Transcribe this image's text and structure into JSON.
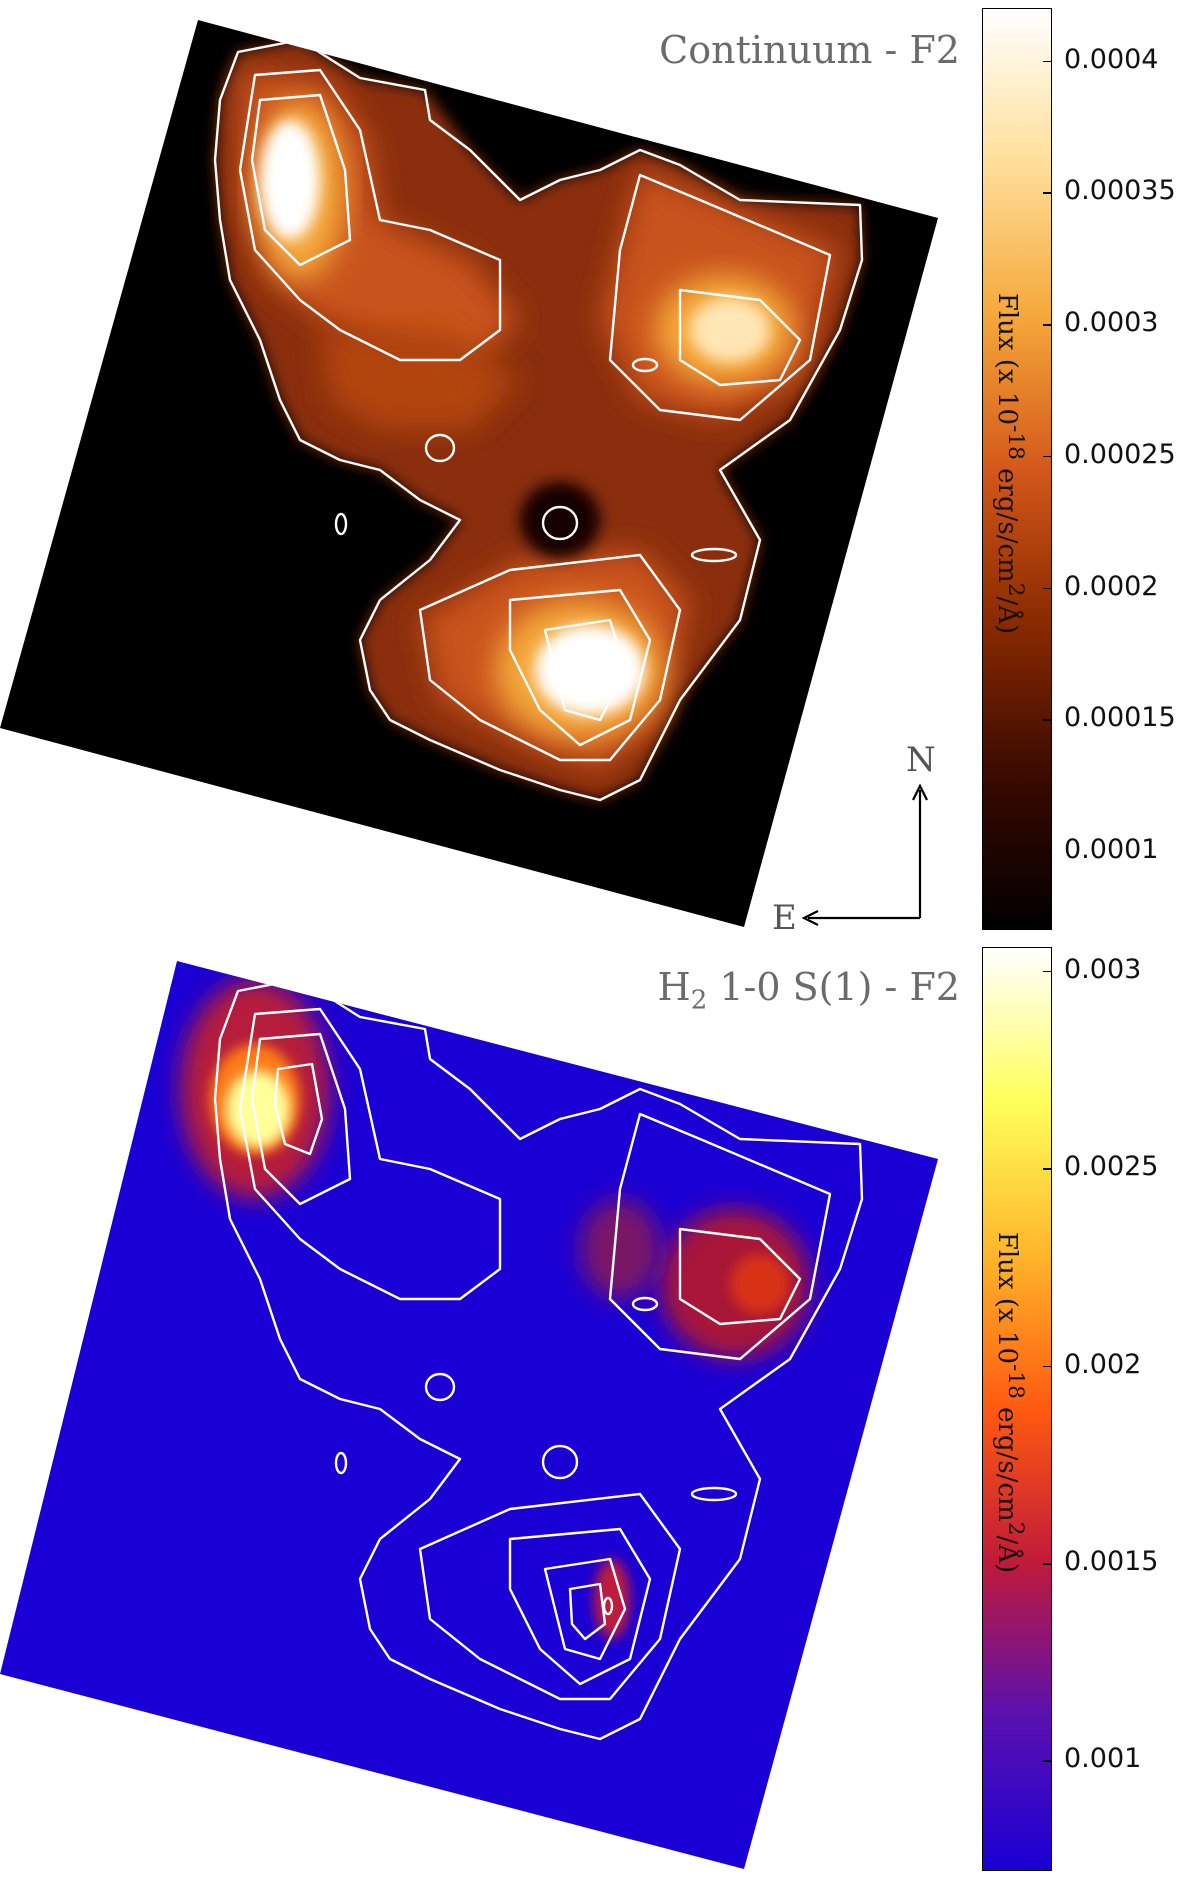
{
  "chart_data": [
    {
      "type": "heatmap",
      "title": "Continuum - F2",
      "colormap": "afmhot",
      "colorbar": {
        "label": "Flux (x 10^-18 erg/s/cm^2/Å)",
        "label_text": "Flux (x 10",
        "label_exponent": "-18",
        "label_units_1": " erg/s/cm",
        "label_units_exponent": "2",
        "label_units_2": "/Å)",
        "range": [
          7e-05,
          0.00042
        ],
        "ticks": [
          "0.0004",
          "0.00035",
          "0.0003",
          "0.00025",
          "0.0002",
          "0.00015",
          "0.0001"
        ],
        "tick_values": [
          0.0004,
          0.00035,
          0.0003,
          0.00025,
          0.0002,
          0.00015,
          0.0001
        ],
        "colors": [
          "#000000",
          "#3a0a00",
          "#8a2a00",
          "#d4581a",
          "#f5a83a",
          "#ffdf9a",
          "#ffffff"
        ]
      },
      "compass": {
        "north": "N",
        "east": "E"
      },
      "contours": "white",
      "bright_regions": [
        {
          "name": "north-east knot",
          "peak": 0.00042
        },
        {
          "name": "western knot",
          "peak": 0.00034
        },
        {
          "name": "southern knot",
          "peak": 0.00042
        }
      ]
    },
    {
      "type": "heatmap",
      "title": "H2 1-0 S(1) - F2",
      "title_main": "H",
      "title_sub": "2",
      "title_rest": " 1-0 S(1) - F2",
      "colormap": "CMRmap-like",
      "colorbar": {
        "label": "Flux (x 10^-18 erg/s/cm^2/Å)",
        "label_text": "Flux (x 10",
        "label_exponent": "-18",
        "label_units_1": " erg/s/cm",
        "label_units_exponent": "2",
        "label_units_2": "/Å)",
        "range": [
          0.00072,
          0.00306
        ],
        "ticks": [
          "0.003",
          "0.0025",
          "0.002",
          "0.0015",
          "0.001"
        ],
        "tick_values": [
          0.003,
          0.0025,
          0.002,
          0.0015,
          0.001
        ],
        "colors": [
          "#1a00d4",
          "#5a10b0",
          "#c01a3a",
          "#ff5a10",
          "#ffb52a",
          "#ffff5a",
          "#ffffff"
        ]
      },
      "contours": "white",
      "bright_regions": [
        {
          "name": "north-east knot",
          "peak": 0.0026
        },
        {
          "name": "western knot",
          "peak": 0.0015
        },
        {
          "name": "southern knot",
          "peak": 0.0013
        }
      ]
    }
  ]
}
